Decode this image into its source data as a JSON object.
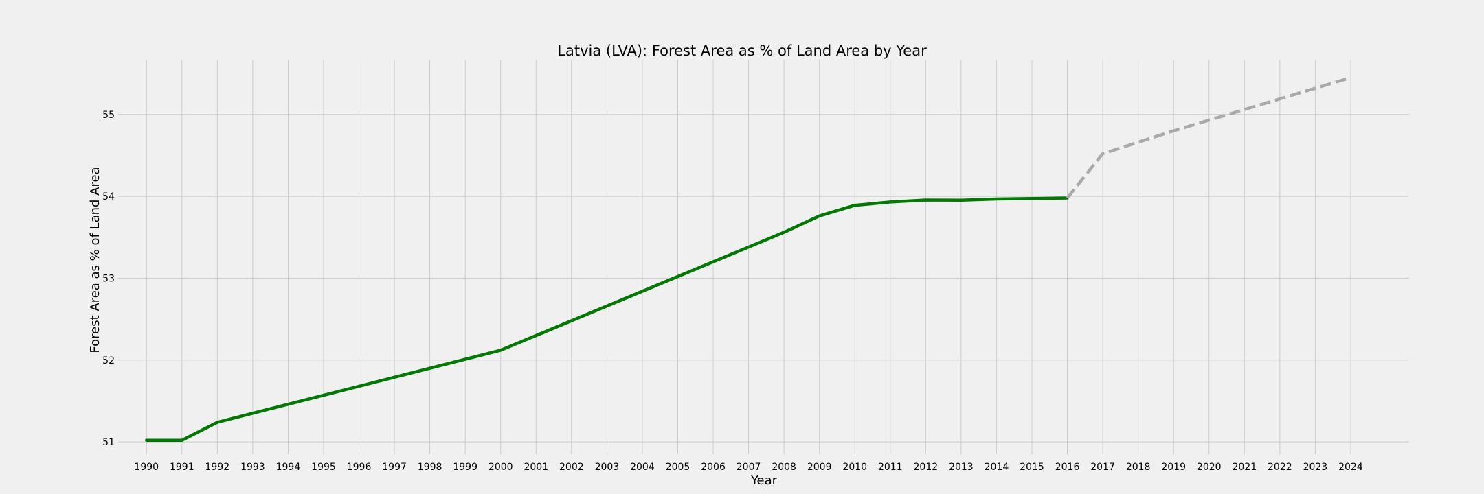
{
  "chart_data": {
    "type": "line",
    "title": "Latvia (LVA): Forest Area as % of Land Area by Year",
    "xlabel": "Year",
    "ylabel": "Forest Area as % of Land Area",
    "x": [
      1990,
      1991,
      1992,
      1993,
      1994,
      1995,
      1996,
      1997,
      1998,
      1999,
      2000,
      2001,
      2002,
      2003,
      2004,
      2005,
      2006,
      2007,
      2008,
      2009,
      2010,
      2011,
      2012,
      2013,
      2014,
      2015,
      2016,
      2017,
      2018,
      2019,
      2020,
      2021,
      2022,
      2023,
      2024
    ],
    "xticks": [
      "1990",
      "1991",
      "1992",
      "1993",
      "1994",
      "1995",
      "1996",
      "1997",
      "1998",
      "1999",
      "2000",
      "2001",
      "2002",
      "2003",
      "2004",
      "2005",
      "2006",
      "2007",
      "2008",
      "2009",
      "2010",
      "2011",
      "2012",
      "2013",
      "2014",
      "2015",
      "2016",
      "2017",
      "2018",
      "2019",
      "2020",
      "2021",
      "2022",
      "2023",
      "2024"
    ],
    "yticks": [
      51,
      52,
      53,
      54,
      55
    ],
    "xlim": [
      1989.2,
      2025.65
    ],
    "ylim": [
      50.85,
      55.66
    ],
    "grid": true,
    "series": [
      {
        "style": "solid",
        "color": "#007a00",
        "x": [
          1990,
          1991,
          1992,
          1993,
          1994,
          1995,
          1996,
          1997,
          1998,
          1999,
          2000,
          2001,
          2002,
          2003,
          2004,
          2005,
          2006,
          2007,
          2008,
          2009,
          2010,
          2011,
          2012,
          2013,
          2014,
          2015,
          2016
        ],
        "values": [
          51.02,
          51.02,
          51.24,
          51.35,
          51.46,
          51.57,
          51.68,
          51.79,
          51.9,
          52.01,
          52.12,
          52.3,
          52.48,
          52.66,
          52.84,
          53.02,
          53.2,
          53.38,
          53.56,
          53.76,
          53.89,
          53.93,
          53.955,
          53.953,
          53.967,
          53.973,
          53.98
        ]
      },
      {
        "style": "dashed",
        "color": "#a9a9a9",
        "x": [
          2016,
          2017,
          2018,
          2019,
          2020,
          2021,
          2022,
          2023,
          2024
        ],
        "values": [
          53.98,
          54.52,
          54.66,
          54.8,
          54.93,
          55.06,
          55.19,
          55.32,
          55.45
        ]
      }
    ]
  }
}
